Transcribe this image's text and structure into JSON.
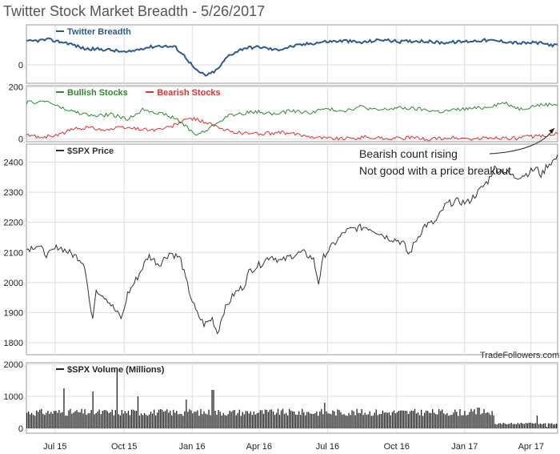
{
  "title": "Twitter Stock Market Breadth - 5/26/2017",
  "watermark": "TradeFollowers.com",
  "annotation": {
    "line1": "Bearish count rising",
    "line2": "Not good with a price breakout"
  },
  "colors": {
    "breadth": "#2e5a8e",
    "bullish": "#2f8a2f",
    "bearish": "#e23030",
    "price": "#333333",
    "volume": "#222222",
    "grid": "#dddddd",
    "border": "#999999"
  },
  "x_axis": {
    "ticks": [
      {
        "label": "Jul 15",
        "t": 0.054
      },
      {
        "label": "Oct 15",
        "t": 0.184
      },
      {
        "label": "Jan 16",
        "t": 0.312
      },
      {
        "label": "Apr 16",
        "t": 0.438
      },
      {
        "label": "Jul 16",
        "t": 0.567
      },
      {
        "label": "Oct 16",
        "t": 0.697
      },
      {
        "label": "Jan 17",
        "t": 0.825
      },
      {
        "label": "Apr 17",
        "t": 0.95
      }
    ]
  },
  "chart_data": [
    {
      "type": "line",
      "panel": "breadth",
      "series": [
        {
          "name": "Twitter Breadth",
          "points": [
            [
              0,
              75
            ],
            [
              0.04,
              82
            ],
            [
              0.08,
              70
            ],
            [
              0.11,
              52
            ],
            [
              0.15,
              50
            ],
            [
              0.19,
              40
            ],
            [
              0.22,
              55
            ],
            [
              0.25,
              62
            ],
            [
              0.28,
              58
            ],
            [
              0.3,
              25
            ],
            [
              0.32,
              -20
            ],
            [
              0.34,
              -35
            ],
            [
              0.36,
              -15
            ],
            [
              0.38,
              30
            ],
            [
              0.41,
              55
            ],
            [
              0.44,
              58
            ],
            [
              0.47,
              48
            ],
            [
              0.5,
              60
            ],
            [
              0.53,
              68
            ],
            [
              0.56,
              75
            ],
            [
              0.6,
              78
            ],
            [
              0.63,
              72
            ],
            [
              0.67,
              82
            ],
            [
              0.7,
              75
            ],
            [
              0.74,
              78
            ],
            [
              0.78,
              72
            ],
            [
              0.82,
              75
            ],
            [
              0.86,
              80
            ],
            [
              0.9,
              76
            ],
            [
              0.93,
              70
            ],
            [
              0.96,
              72
            ],
            [
              1,
              62
            ]
          ]
        }
      ],
      "ylim": [
        -60,
        130
      ],
      "yticks": [
        0
      ]
    },
    {
      "type": "line",
      "panel": "bullbear",
      "series": [
        {
          "name": "Bullish Stocks",
          "points": [
            [
              0,
              140
            ],
            [
              0.04,
              145
            ],
            [
              0.07,
              115
            ],
            [
              0.1,
              100
            ],
            [
              0.13,
              88
            ],
            [
              0.16,
              95
            ],
            [
              0.19,
              75
            ],
            [
              0.22,
              115
            ],
            [
              0.25,
              100
            ],
            [
              0.28,
              80
            ],
            [
              0.3,
              50
            ],
            [
              0.32,
              15
            ],
            [
              0.34,
              35
            ],
            [
              0.36,
              65
            ],
            [
              0.38,
              90
            ],
            [
              0.41,
              100
            ],
            [
              0.44,
              105
            ],
            [
              0.47,
              95
            ],
            [
              0.5,
              110
            ],
            [
              0.53,
              100
            ],
            [
              0.56,
              115
            ],
            [
              0.6,
              110
            ],
            [
              0.63,
              125
            ],
            [
              0.66,
              110
            ],
            [
              0.7,
              120
            ],
            [
              0.74,
              115
            ],
            [
              0.78,
              105
            ],
            [
              0.82,
              115
            ],
            [
              0.86,
              120
            ],
            [
              0.9,
              140
            ],
            [
              0.93,
              115
            ],
            [
              0.96,
              130
            ],
            [
              1,
              135
            ]
          ]
        },
        {
          "name": "Bearish Stocks",
          "points": [
            [
              0,
              15
            ],
            [
              0.03,
              8
            ],
            [
              0.06,
              15
            ],
            [
              0.09,
              40
            ],
            [
              0.12,
              45
            ],
            [
              0.15,
              35
            ],
            [
              0.18,
              45
            ],
            [
              0.21,
              40
            ],
            [
              0.24,
              35
            ],
            [
              0.27,
              45
            ],
            [
              0.29,
              65
            ],
            [
              0.31,
              80
            ],
            [
              0.33,
              70
            ],
            [
              0.35,
              55
            ],
            [
              0.37,
              35
            ],
            [
              0.4,
              25
            ],
            [
              0.44,
              20
            ],
            [
              0.48,
              25
            ],
            [
              0.52,
              15
            ],
            [
              0.56,
              5
            ],
            [
              0.6,
              2
            ],
            [
              0.64,
              8
            ],
            [
              0.68,
              2
            ],
            [
              0.72,
              5
            ],
            [
              0.76,
              0
            ],
            [
              0.8,
              5
            ],
            [
              0.84,
              0
            ],
            [
              0.88,
              5
            ],
            [
              0.92,
              3
            ],
            [
              0.95,
              10
            ],
            [
              0.98,
              15
            ],
            [
              1,
              20
            ]
          ]
        }
      ],
      "ylim": [
        -10,
        205
      ],
      "yticks": [
        0,
        200
      ]
    },
    {
      "type": "line",
      "panel": "price",
      "series": [
        {
          "name": "$SPX Price",
          "points": [
            [
              0,
              2110
            ],
            [
              0.02,
              2125
            ],
            [
              0.04,
              2090
            ],
            [
              0.06,
              2120
            ],
            [
              0.08,
              2100
            ],
            [
              0.1,
              2080
            ],
            [
              0.11,
              2060
            ],
            [
              0.12,
              1920
            ],
            [
              0.125,
              1870
            ],
            [
              0.13,
              1980
            ],
            [
              0.15,
              1950
            ],
            [
              0.17,
              1900
            ],
            [
              0.18,
              1880
            ],
            [
              0.19,
              1960
            ],
            [
              0.21,
              2020
            ],
            [
              0.23,
              2090
            ],
            [
              0.25,
              2060
            ],
            [
              0.27,
              2100
            ],
            [
              0.29,
              2080
            ],
            [
              0.3,
              2010
            ],
            [
              0.31,
              1950
            ],
            [
              0.32,
              1900
            ],
            [
              0.335,
              1860
            ],
            [
              0.35,
              1880
            ],
            [
              0.36,
              1830
            ],
            [
              0.37,
              1900
            ],
            [
              0.39,
              1960
            ],
            [
              0.41,
              1990
            ],
            [
              0.42,
              2040
            ],
            [
              0.44,
              2060
            ],
            [
              0.46,
              2090
            ],
            [
              0.48,
              2070
            ],
            [
              0.5,
              2090
            ],
            [
              0.52,
              2100
            ],
            [
              0.54,
              2080
            ],
            [
              0.55,
              2000
            ],
            [
              0.56,
              2090
            ],
            [
              0.58,
              2130
            ],
            [
              0.6,
              2170
            ],
            [
              0.62,
              2180
            ],
            [
              0.64,
              2185
            ],
            [
              0.66,
              2170
            ],
            [
              0.68,
              2150
            ],
            [
              0.7,
              2140
            ],
            [
              0.71,
              2130
            ],
            [
              0.72,
              2090
            ],
            [
              0.73,
              2130
            ],
            [
              0.75,
              2190
            ],
            [
              0.77,
              2200
            ],
            [
              0.79,
              2260
            ],
            [
              0.81,
              2270
            ],
            [
              0.83,
              2265
            ],
            [
              0.85,
              2300
            ],
            [
              0.87,
              2340
            ],
            [
              0.88,
              2380
            ],
            [
              0.9,
              2370
            ],
            [
              0.92,
              2350
            ],
            [
              0.94,
              2360
            ],
            [
              0.96,
              2380
            ],
            [
              0.97,
              2355
            ],
            [
              0.98,
              2390
            ],
            [
              1,
              2415
            ]
          ]
        }
      ],
      "ylim": [
        1760,
        2460
      ],
      "yticks": [
        1800,
        1900,
        2000,
        2100,
        2200,
        2300,
        2400
      ]
    },
    {
      "type": "bar",
      "panel": "volume",
      "series": [
        {
          "name": "$SPX Volume (Millions)",
          "base": 500,
          "spikes": [
            [
              0.07,
              1250
            ],
            [
              0.125,
              1150
            ],
            [
              0.17,
              1850
            ],
            [
              0.21,
              1000
            ],
            [
              0.3,
              900
            ],
            [
              0.35,
              1200
            ],
            [
              0.56,
              800
            ],
            [
              0.85,
              650
            ]
          ],
          "low_end": [
            [
              0.9,
              150
            ],
            [
              0.96,
              400
            ],
            [
              0.98,
              50
            ]
          ]
        }
      ],
      "ylim": [
        -150,
        2050
      ],
      "yticks": [
        0,
        1000,
        2000
      ]
    }
  ],
  "legends": {
    "breadth": [
      {
        "label": "Twitter Breadth",
        "color": "#2e5a8e"
      }
    ],
    "bullbear": [
      {
        "label": "Bullish Stocks",
        "color": "#2f8a2f"
      },
      {
        "label": "Bearish Stocks",
        "color": "#e23030"
      }
    ],
    "price": [
      {
        "label": "$SPX Price",
        "color": "#333333"
      }
    ],
    "volume": [
      {
        "label": "$SPX Volume (Millions)",
        "color": "#222222"
      }
    ]
  }
}
